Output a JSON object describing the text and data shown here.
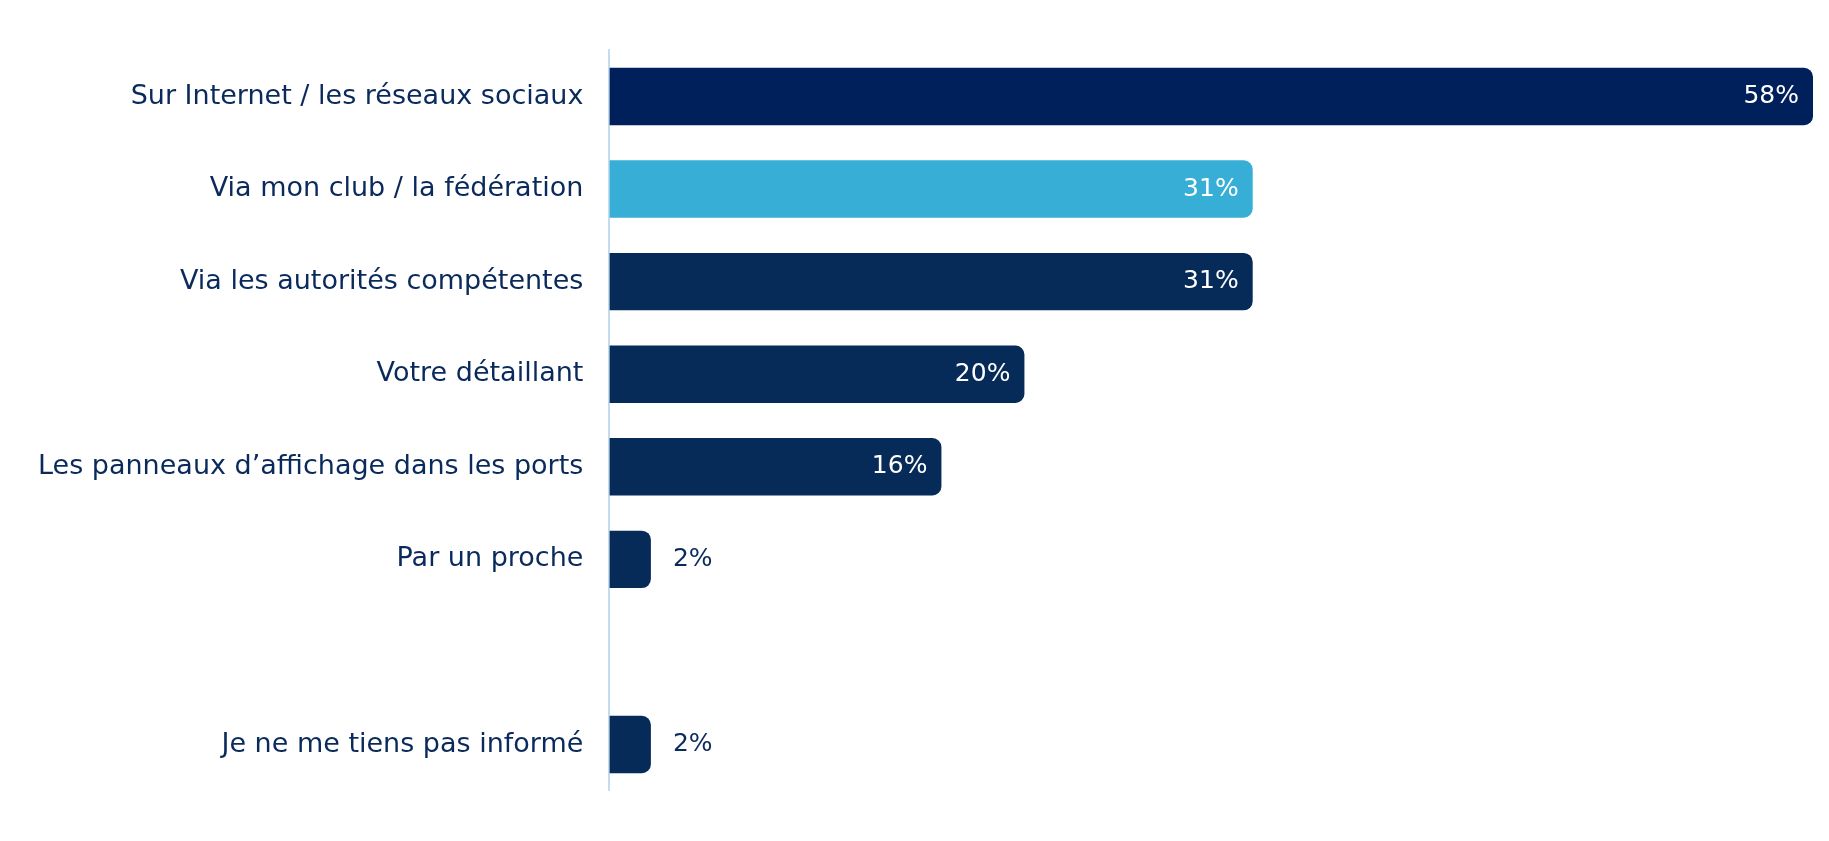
{
  "chart_data": {
    "type": "bar",
    "orientation": "horizontal",
    "categories": [
      "Sur Internet / les réseaux sociaux",
      "Via mon club / la fédération",
      "Via les autorités compétentes",
      "Votre détaillant",
      "Les panneaux d’affichage dans les ports",
      "Par un proche",
      null,
      "Je ne me tiens pas informé"
    ],
    "values": [
      58,
      31,
      31,
      20,
      16,
      2,
      null,
      2
    ],
    "colors": [
      "#00205b",
      "#36aed6",
      "#072b59",
      "#072b59",
      "#072b59",
      "#072b59",
      "#072b59",
      "#072b59"
    ],
    "value_labels": [
      "58%",
      "31%",
      "31%",
      "20%",
      "16%",
      "2%",
      null,
      "2%"
    ],
    "grid": false,
    "legend": false
  }
}
